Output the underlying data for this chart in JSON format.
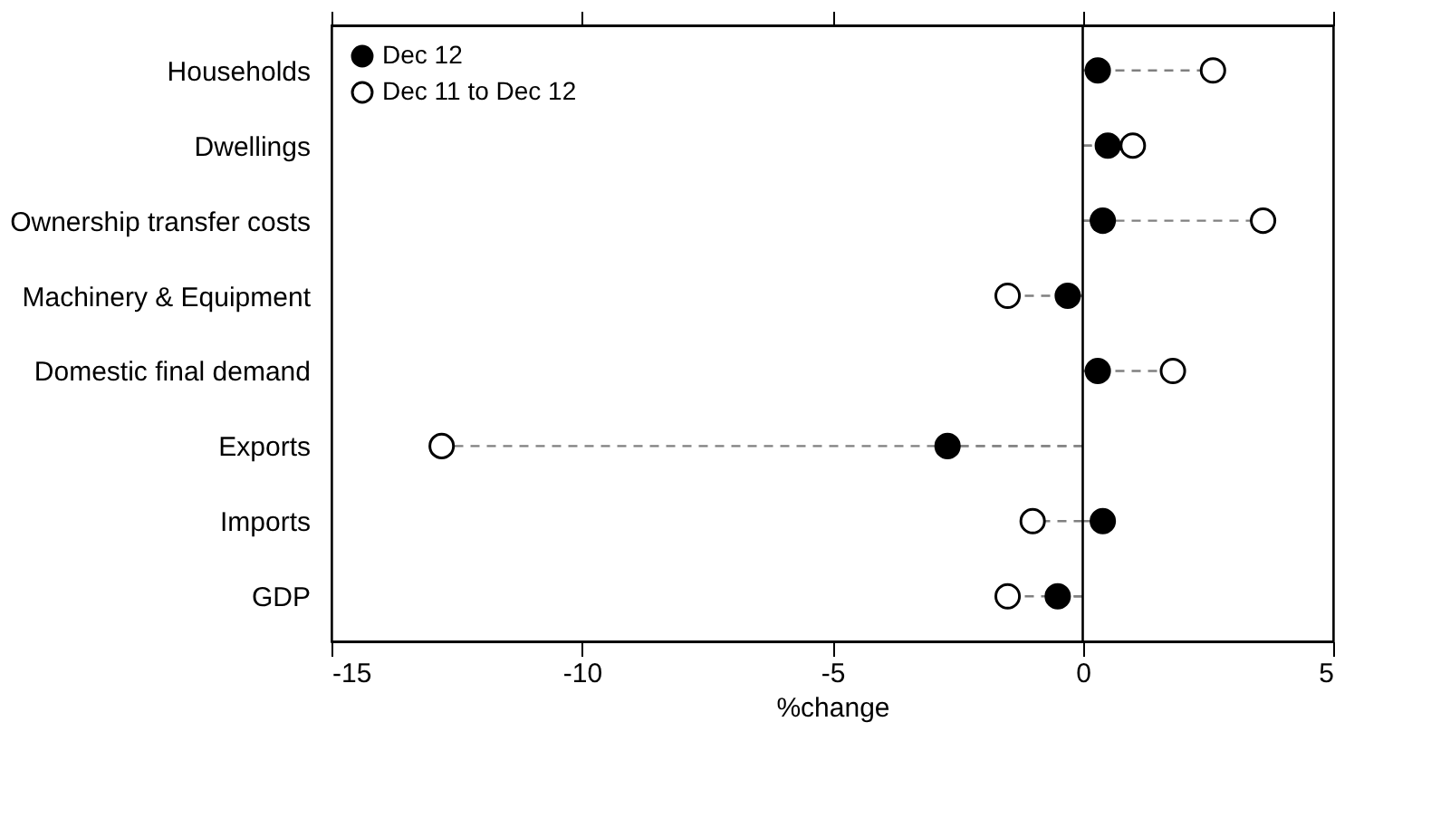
{
  "chart_data": {
    "type": "lollipop",
    "xlabel": "%change",
    "categories": [
      "Households",
      "Dwellings",
      "Ownership transfer costs",
      "Machinery & Equipment",
      "Domestic final demand",
      "Exports",
      "Imports",
      "GDP"
    ],
    "orientation": "horizontal",
    "series": [
      {
        "name": "Dec 12",
        "color": "#000000",
        "values": [
          0.3,
          0.5,
          0.4,
          -0.3,
          0.3,
          -2.7,
          0.4,
          -0.5
        ]
      },
      {
        "name": "Dec 11 to Dec 12",
        "color": "#ffffff",
        "values": [
          2.6,
          1.0,
          3.6,
          -1.5,
          1.8,
          -12.8,
          -1.0,
          -1.5
        ]
      }
    ],
    "xlim": [
      -15,
      5
    ],
    "xticks": [
      -15,
      -10,
      -5,
      0,
      5
    ],
    "ref_lines": [
      {
        "axis": "x",
        "value": 0,
        "color": "#000000"
      }
    ],
    "line_style": "dashed",
    "marker": "circle",
    "legend": "top left",
    "grid": false
  }
}
